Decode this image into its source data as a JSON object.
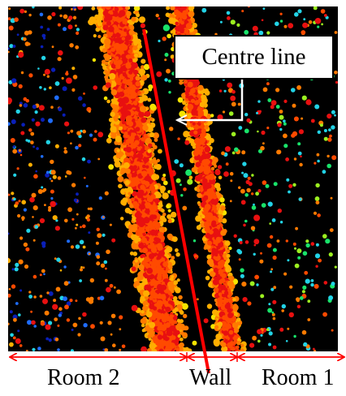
{
  "annotation": {
    "centre_line_label": "Centre line"
  },
  "regions": {
    "room2_label": "Room 2",
    "wall_label": "Wall",
    "room1_label": "Room 1"
  },
  "colors": {
    "background": "#000000",
    "centre_line": "#ff0000",
    "dimension_arrows": "#ff0000",
    "point_palette": [
      "#0a1fb8",
      "#1f6dff",
      "#22d3e6",
      "#19e36a",
      "#9cf020",
      "#f5e400",
      "#ffae00",
      "#ff7a00",
      "#ff4a00",
      "#e81010"
    ]
  }
}
